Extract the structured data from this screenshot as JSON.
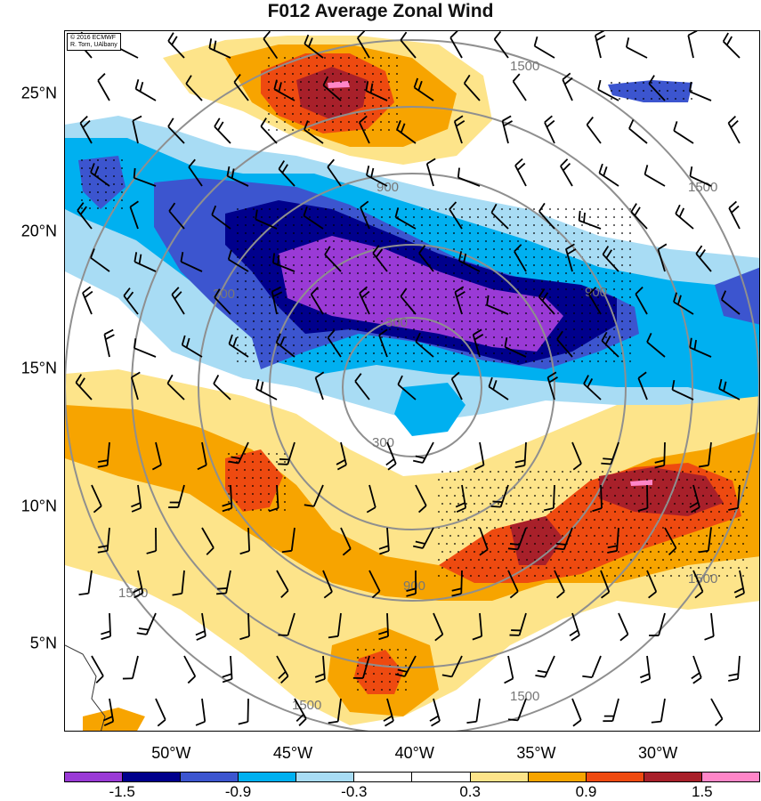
{
  "title": "F012 Average Zonal Wind",
  "credit": {
    "line1": "© 2016 ECMWF",
    "line2": "R. Torn, UAlbany"
  },
  "latitude_labels": [
    {
      "label": "25°N",
      "value": 25
    },
    {
      "label": "20°N",
      "value": 20
    },
    {
      "label": "15°N",
      "value": 15
    },
    {
      "label": "10°N",
      "value": 10
    },
    {
      "label": "5°N",
      "value": 5
    }
  ],
  "longitude_labels": [
    {
      "label": "50°W",
      "value": -50
    },
    {
      "label": "45°W",
      "value": -45
    },
    {
      "label": "40°W",
      "value": -40
    },
    {
      "label": "35°W",
      "value": -35
    },
    {
      "label": "30°W",
      "value": -30
    }
  ],
  "range_ring_labels": [
    "300",
    "900",
    "1500"
  ],
  "colorbar": {
    "colors": [
      "#9a3ad6",
      "#00008c",
      "#3c55cf",
      "#00b0f0",
      "#a8dcf4",
      "#ffffff",
      "#ffffff",
      "#fde48a",
      "#f7a400",
      "#ee4a10",
      "#a8202a",
      "#ff86c8"
    ],
    "labels": [
      "-1.5",
      "-0.9",
      "-0.3",
      "0.3",
      "0.9",
      "1.5"
    ]
  },
  "field_colors": {
    "neg_strong": "#9a3ad6",
    "neg_dark": "#00008c",
    "neg_mid": "#3c55cf",
    "neg_light": "#00b0f0",
    "neg_pale": "#a8dcf4",
    "pos_pale": "#fde48a",
    "pos_light": "#f7a400",
    "pos_mid": "#ee4a10",
    "pos_dark": "#a8202a",
    "pos_strong": "#ff86c8"
  }
}
